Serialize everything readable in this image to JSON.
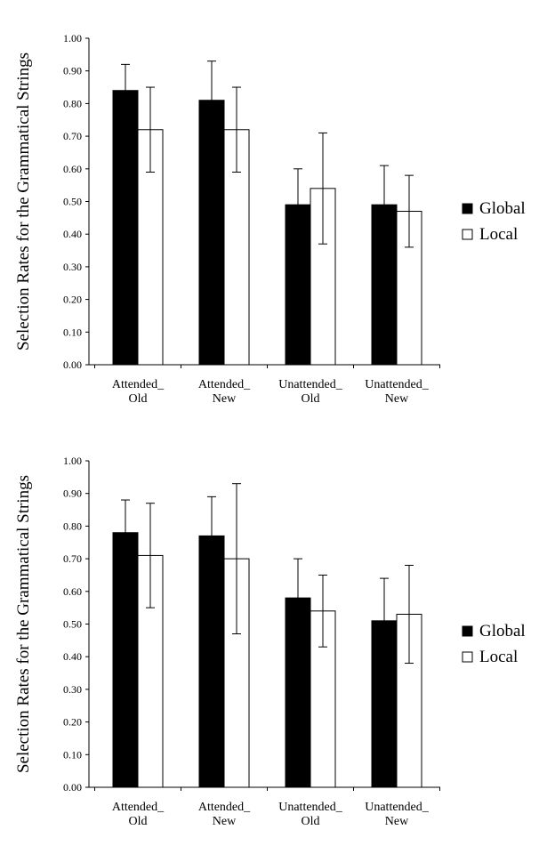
{
  "chart_data": [
    {
      "type": "bar",
      "title": "",
      "xlabel": "",
      "ylabel": "Selection Rates for the Grammatical Strings",
      "ylim": [
        0,
        1.0
      ],
      "yticks": [
        "0.00",
        "0.10",
        "0.20",
        "0.30",
        "0.40",
        "0.50",
        "0.60",
        "0.70",
        "0.80",
        "0.90",
        "1.00"
      ],
      "categories": [
        [
          "Attended_",
          "Old"
        ],
        [
          "Attended_",
          "New"
        ],
        [
          "Unattended_",
          "Old"
        ],
        [
          "Unattended_",
          "New"
        ]
      ],
      "series": [
        {
          "name": "Global",
          "color": "#000000",
          "values": [
            0.84,
            0.81,
            0.49,
            0.49
          ],
          "errors": [
            0.08,
            0.12,
            0.11,
            0.12
          ]
        },
        {
          "name": "Local",
          "color": "#ffffff",
          "values": [
            0.72,
            0.72,
            0.54,
            0.47
          ],
          "errors": [
            0.13,
            0.13,
            0.17,
            0.11
          ]
        }
      ],
      "legend": "right",
      "grid": false
    },
    {
      "type": "bar",
      "title": "",
      "xlabel": "",
      "ylabel": "Selection Rates for the Grammatical Strings",
      "ylim": [
        0,
        1.0
      ],
      "yticks": [
        "0.00",
        "0.10",
        "0.20",
        "0.30",
        "0.40",
        "0.50",
        "0.60",
        "0.70",
        "0.80",
        "0.90",
        "1.00"
      ],
      "categories": [
        [
          "Attended_",
          "Old"
        ],
        [
          "Attended_",
          "New"
        ],
        [
          "Unattended_",
          "Old"
        ],
        [
          "Unattended_",
          "New"
        ]
      ],
      "series": [
        {
          "name": "Global",
          "color": "#000000",
          "values": [
            0.78,
            0.77,
            0.58,
            0.51
          ],
          "errors": [
            0.1,
            0.12,
            0.12,
            0.13
          ]
        },
        {
          "name": "Local",
          "color": "#ffffff",
          "values": [
            0.71,
            0.7,
            0.54,
            0.53
          ],
          "errors": [
            0.16,
            0.23,
            0.11,
            0.15
          ]
        }
      ],
      "legend": "right",
      "grid": false
    }
  ]
}
